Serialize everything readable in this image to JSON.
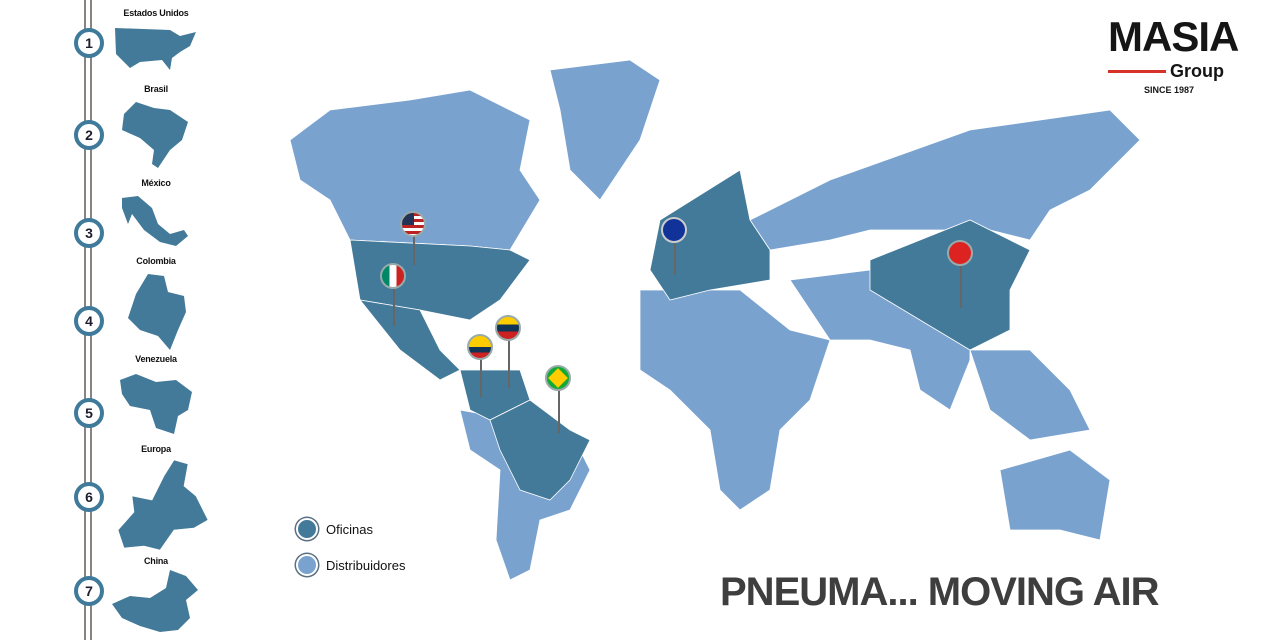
{
  "countries": [
    {
      "num": "1",
      "name": "Estados Unidos"
    },
    {
      "num": "2",
      "name": "Brasil"
    },
    {
      "num": "3",
      "name": "México"
    },
    {
      "num": "4",
      "name": "Colombia"
    },
    {
      "num": "5",
      "name": "Venezuela"
    },
    {
      "num": "6",
      "name": "Europa"
    },
    {
      "num": "7",
      "name": "China"
    }
  ],
  "logo": {
    "brand": "MASIA",
    "sub": "Group",
    "since": "SINCE 1987"
  },
  "legend": [
    {
      "label": "Oficinas",
      "color": "#437a99"
    },
    {
      "label": "Distribuidores",
      "color": "#7aa2cf"
    }
  ],
  "slogan": "PNEUMA... MOVING AIR",
  "colors": {
    "office": "#437a99",
    "distributor": "#7aa2cf",
    "accent": "#d63229"
  },
  "pins": [
    "usa-flag",
    "mexico-flag",
    "venezuela-flag",
    "colombia-flag",
    "brazil-flag",
    "eu-flag",
    "china-flag"
  ]
}
